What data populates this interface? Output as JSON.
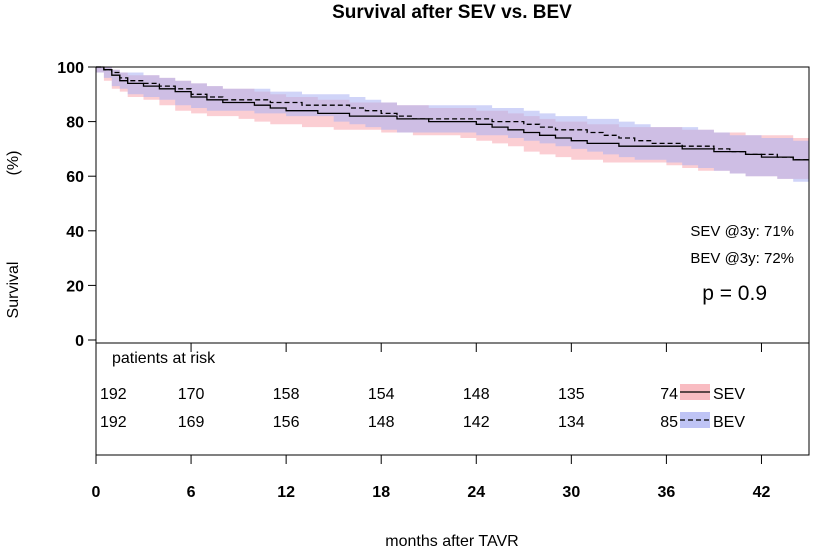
{
  "chart_data": {
    "type": "line",
    "title": "Survival after SEV vs. BEV",
    "xlabel": "months after TAVR",
    "ylabel_left": "Survival",
    "ylabel_right": "(%)",
    "xlim": [
      0,
      45
    ],
    "ylim": [
      0,
      100
    ],
    "xticks": [
      0,
      6,
      12,
      18,
      24,
      30,
      36,
      42
    ],
    "yticks": [
      0,
      20,
      40,
      60,
      80,
      100
    ],
    "series": [
      {
        "name": "SEV",
        "line_style": "solid",
        "band_color": "#f7a6ae",
        "points": [
          [
            0,
            100
          ],
          [
            0.5,
            99
          ],
          [
            1,
            97
          ],
          [
            1.5,
            95
          ],
          [
            2,
            94
          ],
          [
            3,
            93
          ],
          [
            4,
            92
          ],
          [
            5,
            91
          ],
          [
            6,
            89
          ],
          [
            7,
            88
          ],
          [
            8,
            87
          ],
          [
            9,
            87
          ],
          [
            10,
            86
          ],
          [
            11,
            85
          ],
          [
            12,
            84
          ],
          [
            13,
            84
          ],
          [
            14,
            83
          ],
          [
            15,
            83
          ],
          [
            16,
            82
          ],
          [
            17,
            82
          ],
          [
            18,
            82
          ],
          [
            19,
            81
          ],
          [
            20,
            81
          ],
          [
            21,
            80
          ],
          [
            22,
            80
          ],
          [
            23,
            80
          ],
          [
            24,
            79
          ],
          [
            25,
            78
          ],
          [
            26,
            77
          ],
          [
            27,
            76
          ],
          [
            28,
            75
          ],
          [
            29,
            74
          ],
          [
            30,
            73
          ],
          [
            31,
            72
          ],
          [
            32,
            72
          ],
          [
            33,
            71
          ],
          [
            34,
            71
          ],
          [
            35,
            71
          ],
          [
            36,
            71
          ],
          [
            37,
            70
          ],
          [
            38,
            70
          ],
          [
            39,
            69
          ],
          [
            40,
            69
          ],
          [
            41,
            68
          ],
          [
            42,
            67
          ],
          [
            43,
            67
          ],
          [
            44,
            66
          ],
          [
            45,
            66
          ]
        ],
        "lower": [
          [
            0,
            100
          ],
          [
            0.5,
            98
          ],
          [
            1,
            95
          ],
          [
            1.5,
            92
          ],
          [
            2,
            91
          ],
          [
            3,
            89
          ],
          [
            4,
            88
          ],
          [
            5,
            86
          ],
          [
            6,
            84
          ],
          [
            7,
            83
          ],
          [
            8,
            82
          ],
          [
            9,
            82
          ],
          [
            10,
            81
          ],
          [
            11,
            80
          ],
          [
            12,
            79
          ],
          [
            13,
            79
          ],
          [
            14,
            78
          ],
          [
            15,
            78
          ],
          [
            16,
            77
          ],
          [
            17,
            77
          ],
          [
            18,
            77
          ],
          [
            19,
            76
          ],
          [
            20,
            76
          ],
          [
            21,
            75
          ],
          [
            22,
            75
          ],
          [
            23,
            75
          ],
          [
            24,
            74
          ],
          [
            25,
            73
          ],
          [
            26,
            72
          ],
          [
            27,
            71
          ],
          [
            28,
            69
          ],
          [
            29,
            68
          ],
          [
            30,
            67
          ],
          [
            31,
            66
          ],
          [
            32,
            66
          ],
          [
            33,
            65
          ],
          [
            34,
            65
          ],
          [
            35,
            65
          ],
          [
            36,
            65
          ],
          [
            37,
            64
          ],
          [
            38,
            63
          ],
          [
            39,
            62
          ],
          [
            40,
            62
          ],
          [
            41,
            61
          ],
          [
            42,
            60
          ],
          [
            43,
            60
          ],
          [
            44,
            59
          ],
          [
            45,
            59
          ]
        ],
        "upper": [
          [
            0,
            100
          ],
          [
            0.5,
            100
          ],
          [
            1,
            99
          ],
          [
            1.5,
            98
          ],
          [
            2,
            97
          ],
          [
            3,
            97
          ],
          [
            4,
            96
          ],
          [
            5,
            95
          ],
          [
            6,
            94
          ],
          [
            7,
            93
          ],
          [
            8,
            92
          ],
          [
            9,
            92
          ],
          [
            10,
            91
          ],
          [
            11,
            90
          ],
          [
            12,
            89
          ],
          [
            13,
            89
          ],
          [
            14,
            88
          ],
          [
            15,
            88
          ],
          [
            16,
            87
          ],
          [
            17,
            87
          ],
          [
            18,
            87
          ],
          [
            19,
            86
          ],
          [
            20,
            86
          ],
          [
            21,
            85
          ],
          [
            22,
            85
          ],
          [
            23,
            85
          ],
          [
            24,
            84
          ],
          [
            25,
            84
          ],
          [
            26,
            83
          ],
          [
            27,
            82
          ],
          [
            28,
            81
          ],
          [
            29,
            80
          ],
          [
            30,
            80
          ],
          [
            31,
            79
          ],
          [
            32,
            79
          ],
          [
            33,
            78
          ],
          [
            34,
            78
          ],
          [
            35,
            78
          ],
          [
            36,
            78
          ],
          [
            37,
            77
          ],
          [
            38,
            77
          ],
          [
            39,
            76
          ],
          [
            40,
            76
          ],
          [
            41,
            75
          ],
          [
            42,
            75
          ],
          [
            43,
            75
          ],
          [
            44,
            74
          ],
          [
            45,
            74
          ]
        ]
      },
      {
        "name": "BEV",
        "line_style": "dashed",
        "band_color": "#aab0f2",
        "points": [
          [
            0,
            100
          ],
          [
            0.5,
            99
          ],
          [
            1,
            98
          ],
          [
            1.5,
            96
          ],
          [
            2,
            95
          ],
          [
            3,
            94
          ],
          [
            4,
            93
          ],
          [
            5,
            92
          ],
          [
            6,
            90
          ],
          [
            7,
            89
          ],
          [
            8,
            88
          ],
          [
            9,
            88
          ],
          [
            10,
            88
          ],
          [
            11,
            87
          ],
          [
            12,
            87
          ],
          [
            13,
            86
          ],
          [
            14,
            86
          ],
          [
            15,
            86
          ],
          [
            16,
            85
          ],
          [
            17,
            84
          ],
          [
            18,
            83
          ],
          [
            19,
            82
          ],
          [
            20,
            81
          ],
          [
            21,
            81
          ],
          [
            22,
            81
          ],
          [
            23,
            81
          ],
          [
            24,
            81
          ],
          [
            25,
            80
          ],
          [
            26,
            80
          ],
          [
            27,
            79
          ],
          [
            28,
            78
          ],
          [
            29,
            77
          ],
          [
            30,
            77
          ],
          [
            31,
            76
          ],
          [
            32,
            75
          ],
          [
            33,
            74
          ],
          [
            34,
            73
          ],
          [
            35,
            72
          ],
          [
            36,
            72
          ],
          [
            37,
            71
          ],
          [
            38,
            71
          ],
          [
            39,
            70
          ],
          [
            40,
            69
          ],
          [
            41,
            68
          ],
          [
            42,
            68
          ],
          [
            43,
            67
          ],
          [
            44,
            66
          ],
          [
            45,
            66
          ]
        ],
        "lower": [
          [
            0,
            100
          ],
          [
            0.5,
            98
          ],
          [
            1,
            96
          ],
          [
            1.5,
            93
          ],
          [
            2,
            92
          ],
          [
            3,
            90
          ],
          [
            4,
            89
          ],
          [
            5,
            88
          ],
          [
            6,
            86
          ],
          [
            7,
            85
          ],
          [
            8,
            84
          ],
          [
            9,
            84
          ],
          [
            10,
            84
          ],
          [
            11,
            83
          ],
          [
            12,
            83
          ],
          [
            13,
            82
          ],
          [
            14,
            82
          ],
          [
            15,
            82
          ],
          [
            16,
            80
          ],
          [
            17,
            79
          ],
          [
            18,
            78
          ],
          [
            19,
            77
          ],
          [
            20,
            76
          ],
          [
            21,
            76
          ],
          [
            22,
            76
          ],
          [
            23,
            76
          ],
          [
            24,
            76
          ],
          [
            25,
            75
          ],
          [
            26,
            75
          ],
          [
            27,
            74
          ],
          [
            28,
            73
          ],
          [
            29,
            72
          ],
          [
            30,
            71
          ],
          [
            31,
            70
          ],
          [
            32,
            69
          ],
          [
            33,
            68
          ],
          [
            34,
            67
          ],
          [
            35,
            66
          ],
          [
            36,
            66
          ],
          [
            37,
            65
          ],
          [
            38,
            64
          ],
          [
            39,
            63
          ],
          [
            40,
            62
          ],
          [
            41,
            61
          ],
          [
            42,
            60
          ],
          [
            43,
            60
          ],
          [
            44,
            59
          ],
          [
            45,
            58
          ]
        ],
        "upper": [
          [
            0,
            100
          ],
          [
            0.5,
            100
          ],
          [
            1,
            99
          ],
          [
            1.5,
            98
          ],
          [
            2,
            98
          ],
          [
            3,
            97
          ],
          [
            4,
            96
          ],
          [
            5,
            95
          ],
          [
            6,
            94
          ],
          [
            7,
            93
          ],
          [
            8,
            92
          ],
          [
            9,
            92
          ],
          [
            10,
            92
          ],
          [
            11,
            91
          ],
          [
            12,
            91
          ],
          [
            13,
            90
          ],
          [
            14,
            90
          ],
          [
            15,
            90
          ],
          [
            16,
            89
          ],
          [
            17,
            88
          ],
          [
            18,
            87
          ],
          [
            19,
            86
          ],
          [
            20,
            86
          ],
          [
            21,
            86
          ],
          [
            22,
            86
          ],
          [
            23,
            86
          ],
          [
            24,
            86
          ],
          [
            25,
            85
          ],
          [
            26,
            85
          ],
          [
            27,
            84
          ],
          [
            28,
            83
          ],
          [
            29,
            82
          ],
          [
            30,
            82
          ],
          [
            31,
            81
          ],
          [
            32,
            81
          ],
          [
            33,
            80
          ],
          [
            34,
            79
          ],
          [
            35,
            78
          ],
          [
            36,
            78
          ],
          [
            37,
            78
          ],
          [
            38,
            77
          ],
          [
            39,
            76
          ],
          [
            40,
            75
          ],
          [
            41,
            75
          ],
          [
            42,
            74
          ],
          [
            43,
            74
          ],
          [
            44,
            73
          ],
          [
            45,
            73
          ]
        ]
      }
    ],
    "annotations": {
      "sev_3y": "SEV @3y: 71%",
      "bev_3y": "BEV @3y: 72%",
      "p_value": "p = 0.9"
    },
    "risk_table": {
      "title": "patients at risk",
      "times": [
        0,
        6,
        12,
        18,
        24,
        30,
        36
      ],
      "rows": [
        {
          "name": "SEV",
          "counts": [
            "192",
            "170",
            "158",
            "154",
            "148",
            "135",
            "74"
          ]
        },
        {
          "name": "BEV",
          "counts": [
            "192",
            "169",
            "156",
            "148",
            "142",
            "134",
            "85"
          ]
        }
      ]
    }
  }
}
